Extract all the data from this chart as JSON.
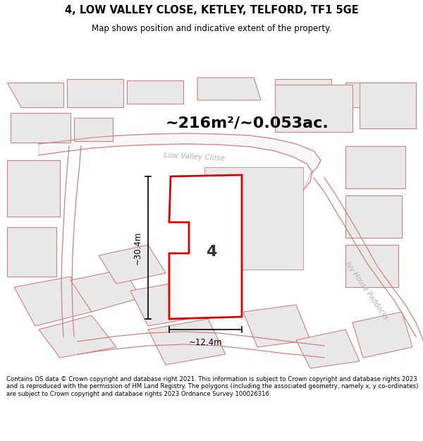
{
  "title_line1": "4, LOW VALLEY CLOSE, KETLEY, TELFORD, TF1 5GE",
  "title_line2": "Map shows position and indicative extent of the property.",
  "area_text": "~216m²/~0.053ac.",
  "dim_width": "~12.4m",
  "dim_height": "~30.4m",
  "plot_number": "4",
  "road_label1": "Low Valley Close",
  "road_label2": "Ivy House Paddocks",
  "footer_text": "Contains OS data © Crown copyright and database right 2021. This information is subject to Crown copyright and database rights 2023 and is reproduced with the permission of HM Land Registry. The polygons (including the associated geometry, namely x, y co-ordinates) are subject to Crown copyright and database rights 2023 Ordnance Survey 100026316.",
  "map_bg": "#ffffff",
  "building_fill": "#e8e8e8",
  "building_edge": "#d08080",
  "road_color": "#d08080",
  "red_color": "#dd0000",
  "prop_fill": "#ffffff",
  "title_bg": "#ffffff",
  "footer_bg": "#ffffff",
  "dim_color": "#000000",
  "area_color": "#000000",
  "plot_num_color": "#333333",
  "road_label_color": "#b0b0b0"
}
